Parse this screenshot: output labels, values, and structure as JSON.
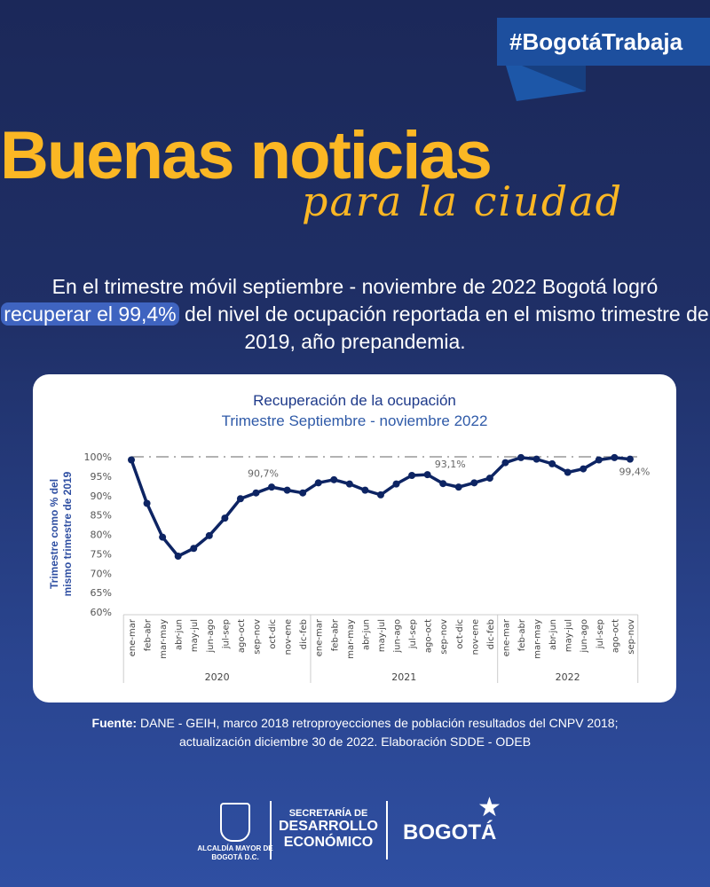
{
  "hashtag": "#BogotáTrabaja",
  "headline": {
    "main": "Buenas noticias",
    "script": "para la ciudad"
  },
  "lead": {
    "before": "En el trimestre móvil septiembre - noviembre de 2022 Bogotá logró",
    "highlight": "recuperar el 99,4%",
    "after": "del nivel de ocupación reportada en el mismo trimestre de 2019, año prepandemia."
  },
  "source": {
    "label": "Fuente:",
    "line1": "DANE - GEIH, marco 2018 retroproyecciones de población resultados del CNPV 2018;",
    "line2": "actualización diciembre 30 de 2022. Elaboración SDDE - ODEB"
  },
  "logos": {
    "alcaldia": "ALCALDÍA MAYOR DE BOGOTÁ D.C.",
    "sde_1": "SECRETARÍA DE",
    "sde_2": "DESARROLLO",
    "sde_3": "ECONÓMICO",
    "bogota": "BOGOTÁ"
  },
  "colors": {
    "background": "#1f2f66",
    "accent": "#fbb724",
    "line": "#0d2463",
    "highlight": "#3f64c0"
  },
  "chart_data": {
    "type": "line",
    "title": "Recuperación de la ocupación",
    "subtitle": "Trimestre Septiembre - noviembre 2022",
    "ylabel_1": "Trimestre como % del",
    "ylabel_2": "mismo trimestre de 2019",
    "ylim": [
      60,
      100
    ],
    "yticks": [
      "60%",
      "65%",
      "70%",
      "75%",
      "80%",
      "85%",
      "90%",
      "95%",
      "100%"
    ],
    "reference_line": 100,
    "groups": [
      {
        "year": "2020",
        "count": 12
      },
      {
        "year": "2021",
        "count": 12
      },
      {
        "year": "2022",
        "count": 9
      }
    ],
    "categories": [
      "ene-mar",
      "feb-abr",
      "mar-may",
      "abr-jun",
      "may-jul",
      "jun-ago",
      "jul-sep",
      "ago-oct",
      "sep-nov",
      "oct-dic",
      "nov-ene",
      "dic-feb",
      "ene-mar",
      "feb-abr",
      "mar-may",
      "abr-jun",
      "may-jul",
      "jun-ago",
      "jul-sep",
      "ago-oct",
      "sep-nov",
      "oct-dic",
      "nov-ene",
      "dic-feb",
      "ene-mar",
      "feb-abr",
      "mar-may",
      "abr-jun",
      "may-jul",
      "jun-ago",
      "jul-sep",
      "ago-oct",
      "sep-nov"
    ],
    "values": [
      99.2,
      88.0,
      79.3,
      74.4,
      76.4,
      79.7,
      84.2,
      89.2,
      90.7,
      92.2,
      91.4,
      90.7,
      93.3,
      94.1,
      93.0,
      91.4,
      90.2,
      93.0,
      95.2,
      95.4,
      93.1,
      92.2,
      93.3,
      94.5,
      98.5,
      99.8,
      99.4,
      98.2,
      96.0,
      96.9,
      99.2,
      99.8,
      99.4
    ],
    "data_labels": [
      {
        "index": 8,
        "text": "90,7%"
      },
      {
        "index": 20,
        "text": "93,1%"
      },
      {
        "index": 32,
        "text": "99,4%"
      }
    ]
  }
}
